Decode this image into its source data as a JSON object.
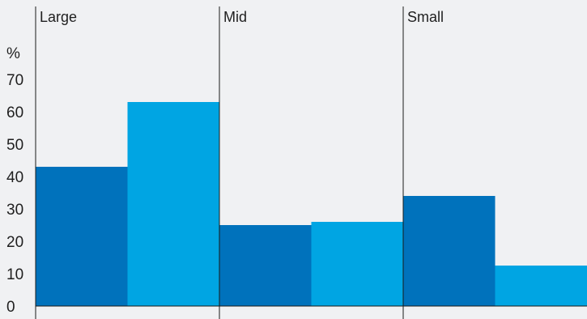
{
  "chart_data": {
    "type": "bar",
    "categories": [
      "Large",
      "Mid",
      "Small"
    ],
    "series": [
      {
        "values": [
          43,
          25,
          34
        ],
        "color": "#0072bc"
      },
      {
        "values": [
          63,
          26,
          12.5
        ],
        "color": "#00a5e3"
      }
    ],
    "ylabel": "%",
    "ylim": [
      0,
      70
    ],
    "yticks": [
      0,
      10,
      20,
      30,
      40,
      50,
      60,
      70
    ],
    "grid": false,
    "legend": "none"
  }
}
